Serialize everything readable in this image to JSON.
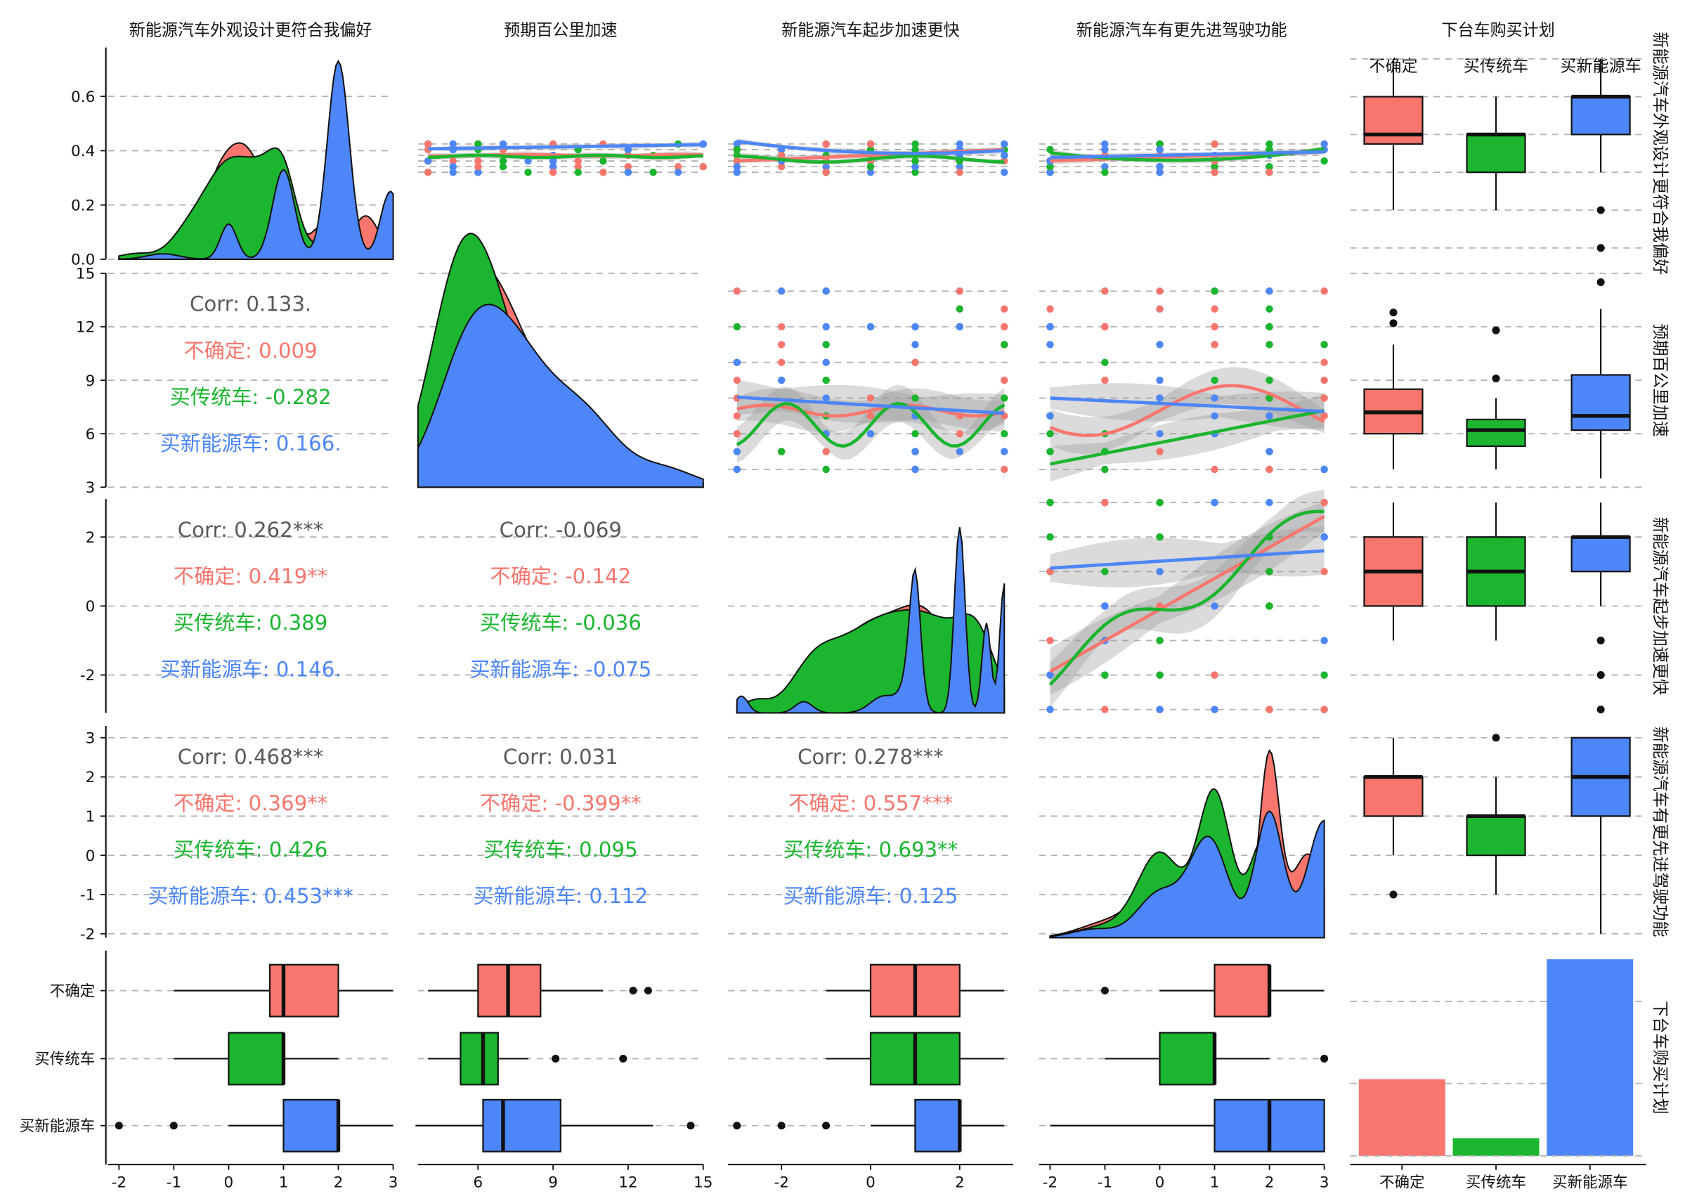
{
  "chart_data": {
    "type": "pairs-plot",
    "variables": [
      "新能源汽车外观设计更符合我偏好",
      "预期百公里加速",
      "新能源汽车起步加速更快",
      "新能源汽车有更先进驾驶功能",
      "下台车购买计划"
    ],
    "row_strip_labels": [
      "新能源汽车外观设计更符合我偏好",
      "预期百公里加速",
      "新能源汽车起步加速更快",
      "新能源汽车有更先进驾驶功能",
      "下台车购买计划"
    ],
    "groups": [
      "不确定",
      "买传统车",
      "买新能源车"
    ],
    "colors": {
      "不确定": "#F8766D",
      "买传统车": "#1BB52F",
      "买新能源车": "#4C86F8",
      "overall": "#595959"
    },
    "axis_ticks": {
      "x": [
        [
          "-2",
          "-1",
          "0",
          "1",
          "2",
          "3"
        ],
        [
          "6",
          "9",
          "12",
          "15"
        ],
        [
          "-2",
          "0",
          "2"
        ],
        [
          "-2",
          "-1",
          "0",
          "1",
          "2",
          "3"
        ]
      ],
      "y": [
        [
          "0.0",
          "0.2",
          "0.4",
          "0.6"
        ],
        [
          "3",
          "6",
          "9",
          "12",
          "15"
        ],
        [
          "-2",
          "0",
          "2"
        ],
        [
          "-2",
          "-1",
          "0",
          "1",
          "2",
          "3"
        ]
      ]
    },
    "correlations": [
      {
        "row": 1,
        "col": 0,
        "overall": "Corr: 0.133.",
        "groups": [
          "不确定: 0.009",
          "买传统车: -0.282",
          "买新能源车: 0.166."
        ]
      },
      {
        "row": 2,
        "col": 0,
        "overall": "Corr: 0.262***",
        "groups": [
          "不确定: 0.419**",
          "买传统车: 0.389",
          "买新能源车: 0.146."
        ]
      },
      {
        "row": 2,
        "col": 1,
        "overall": "Corr: -0.069",
        "groups": [
          "不确定: -0.142",
          "买传统车: -0.036",
          "买新能源车: -0.075"
        ]
      },
      {
        "row": 3,
        "col": 0,
        "overall": "Corr: 0.468***",
        "groups": [
          "不确定: 0.369**",
          "买传统车: 0.426",
          "买新能源车: 0.453***"
        ]
      },
      {
        "row": 3,
        "col": 1,
        "overall": "Corr: 0.031",
        "groups": [
          "不确定: -0.399**",
          "买传统车: 0.095",
          "买新能源车: 0.112"
        ]
      },
      {
        "row": 3,
        "col": 2,
        "overall": "Corr: 0.278***",
        "groups": [
          "不确定: 0.557***",
          "买传统车: 0.693**",
          "买新能源车: 0.125"
        ]
      }
    ],
    "bar_counts": {
      "不确定": 0.39,
      "买传统车": 0.09,
      "买新能源车": 1.0
    },
    "boxplots_by_variable": [
      {
        "不确定": [
          -1,
          0.75,
          1,
          2,
          3
        ],
        "买传统车": [
          -1,
          0,
          1,
          1,
          2
        ],
        "买新能源车": [
          0,
          1,
          2,
          2,
          3
        ],
        "outliers": {
          "买新能源车": [
            -2,
            -1
          ]
        }
      },
      {
        "不确定": [
          4,
          6,
          7.2,
          8.5,
          11
        ],
        "买传统车": [
          4,
          5.3,
          6.2,
          6.8,
          8
        ],
        "买新能源车": [
          3.5,
          6.2,
          7,
          9.3,
          13
        ],
        "outliers": {
          "不确定": [
            12.2,
            12.8
          ],
          "买传统车": [
            9.1,
            11.8
          ],
          "买新能源车": [
            14.5
          ]
        }
      },
      {
        "不确定": [
          -1,
          0,
          1,
          2,
          3
        ],
        "买传统车": [
          -1,
          0,
          1,
          2,
          3
        ],
        "买新能源车": [
          0,
          1,
          2,
          2,
          3
        ],
        "outliers": {
          "买新能源车": [
            -3,
            -2,
            -1
          ]
        }
      },
      {
        "不确定": [
          0,
          1,
          2,
          2,
          3
        ],
        "买传统车": [
          -1,
          0,
          1,
          1,
          2
        ],
        "买新能源车": [
          -2,
          1,
          2,
          3,
          3
        ],
        "outliers": {
          "不确定": [
            -1
          ],
          "买传统车": [
            3
          ]
        }
      }
    ]
  }
}
